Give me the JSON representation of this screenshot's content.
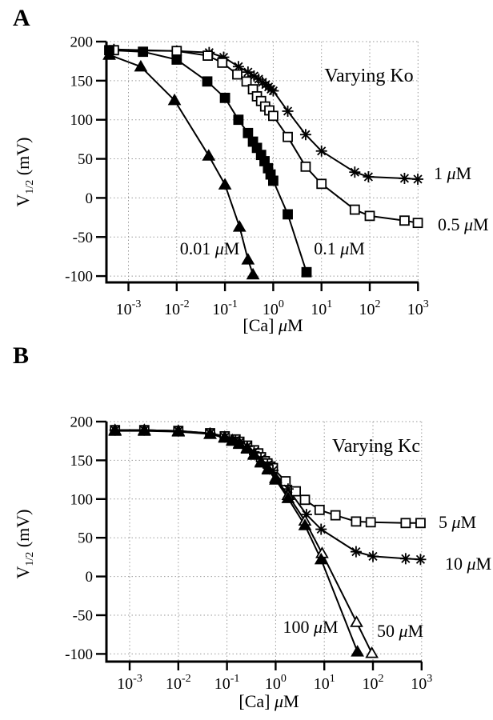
{
  "figure": {
    "description": "Two-panel plot of half-activation voltage versus calcium concentration",
    "panel_letters": [
      "A",
      "B"
    ]
  },
  "chart_data": [
    {
      "type": "line",
      "panel_letter": "A",
      "annotation": "Varying Ko",
      "xlabel": "[Ca] μM",
      "ylabel_parts": [
        "V",
        "1/2",
        " (mV)"
      ],
      "x_scale": "log",
      "xtick_exponents": [
        -3,
        -2,
        -1,
        0,
        1,
        2,
        3
      ],
      "yticks": [
        200,
        150,
        100,
        50,
        0,
        -50,
        -100
      ],
      "ylim": [
        -108,
        200
      ],
      "xlim_log": [
        -3.45,
        3.05
      ],
      "grid": true,
      "legend_position": "labels-on-curves",
      "series": [
        {
          "label": "1 μM",
          "marker": "asterisk",
          "points": [
            [
              0.0005,
              190
            ],
            [
              0.01,
              188
            ],
            [
              0.047,
              186
            ],
            [
              0.094,
              180
            ],
            [
              0.19,
              168
            ],
            [
              0.3,
              161
            ],
            [
              0.4,
              156
            ],
            [
              0.5,
              152
            ],
            [
              0.6,
              148
            ],
            [
              0.7,
              145
            ],
            [
              0.8,
              142
            ],
            [
              0.9,
              139
            ],
            [
              1.0,
              137
            ],
            [
              2,
              111
            ],
            [
              4.7,
              81
            ],
            [
              10,
              60
            ],
            [
              49,
              33
            ],
            [
              94,
              27
            ],
            [
              525,
              25
            ],
            [
              990,
              24
            ]
          ]
        },
        {
          "label": "0.5 μM",
          "marker": "open-square",
          "points": [
            [
              0.0005,
              189
            ],
            [
              0.01,
              188
            ],
            [
              0.044,
              182
            ],
            [
              0.088,
              173
            ],
            [
              0.18,
              158
            ],
            [
              0.28,
              149
            ],
            [
              0.38,
              139
            ],
            [
              0.46,
              130
            ],
            [
              0.56,
              124
            ],
            [
              0.68,
              117
            ],
            [
              0.83,
              112
            ],
            [
              1.0,
              105
            ],
            [
              2,
              78
            ],
            [
              4.7,
              40
            ],
            [
              10,
              18
            ],
            [
              49,
              -15
            ],
            [
              100,
              -23
            ],
            [
              525,
              -29
            ],
            [
              990,
              -32
            ]
          ]
        },
        {
          "label": "0.1 μM",
          "marker": "filled-square",
          "points": [
            [
              0.0004,
              189
            ],
            [
              0.002,
              187
            ],
            [
              0.01,
              177
            ],
            [
              0.043,
              149
            ],
            [
              0.1,
              128
            ],
            [
              0.19,
              100
            ],
            [
              0.3,
              83
            ],
            [
              0.38,
              72
            ],
            [
              0.46,
              64
            ],
            [
              0.56,
              55
            ],
            [
              0.66,
              47
            ],
            [
              0.78,
              38
            ],
            [
              0.88,
              30
            ],
            [
              1.0,
              22
            ],
            [
              2,
              -21
            ],
            [
              4.9,
              -95
            ]
          ]
        },
        {
          "label": "0.01 μM",
          "marker": "filled-triangle",
          "points": [
            [
              0.0004,
              183
            ],
            [
              0.0018,
              168
            ],
            [
              0.009,
              125
            ],
            [
              0.046,
              54
            ],
            [
              0.1,
              17
            ],
            [
              0.2,
              -37
            ],
            [
              0.3,
              -79
            ],
            [
              0.38,
              -98
            ]
          ]
        }
      ]
    },
    {
      "type": "line",
      "panel_letter": "B",
      "annotation": "Varying Kc",
      "xlabel": "[Ca] μM",
      "ylabel_parts": [
        "V",
        "1/2",
        " (mV)"
      ],
      "x_scale": "log",
      "xtick_exponents": [
        -3,
        -2,
        -1,
        0,
        1,
        2,
        3
      ],
      "yticks": [
        200,
        150,
        100,
        50,
        0,
        -50,
        -100
      ],
      "ylim": [
        -108,
        200
      ],
      "xlim_log": [
        -3.45,
        3.05
      ],
      "grid": true,
      "legend_position": "labels-on-curves",
      "series": [
        {
          "label": "5 μM",
          "marker": "open-square",
          "points": [
            [
              0.0005,
              189
            ],
            [
              0.002,
              189
            ],
            [
              0.01,
              188
            ],
            [
              0.045,
              185
            ],
            [
              0.09,
              181
            ],
            [
              0.15,
              177
            ],
            [
              0.18,
              174
            ],
            [
              0.26,
              169
            ],
            [
              0.36,
              163
            ],
            [
              0.44,
              159
            ],
            [
              0.5,
              154
            ],
            [
              0.6,
              149
            ],
            [
              0.68,
              146
            ],
            [
              0.78,
              142
            ],
            [
              0.88,
              140
            ],
            [
              1.6,
              123
            ],
            [
              2.6,
              110
            ],
            [
              4,
              99
            ],
            [
              8,
              86
            ],
            [
              17,
              79
            ],
            [
              45,
              71
            ],
            [
              90,
              70
            ],
            [
              470,
              69
            ],
            [
              950,
              69
            ]
          ]
        },
        {
          "label": "10 μM",
          "marker": "asterisk",
          "points": [
            [
              0.0005,
              189
            ],
            [
              0.002,
              189
            ],
            [
              0.01,
              188
            ],
            [
              0.045,
              185
            ],
            [
              0.09,
              180
            ],
            [
              0.15,
              176
            ],
            [
              0.18,
              173
            ],
            [
              0.26,
              168
            ],
            [
              0.36,
              161
            ],
            [
              0.5,
              152
            ],
            [
              0.68,
              144
            ],
            [
              0.88,
              137
            ],
            [
              1.8,
              113
            ],
            [
              4.3,
              80
            ],
            [
              8.6,
              61
            ],
            [
              45,
              32
            ],
            [
              100,
              26
            ],
            [
              470,
              23
            ],
            [
              950,
              22
            ]
          ]
        },
        {
          "label": "50 μM",
          "marker": "open-triangle",
          "points": [
            [
              0.0005,
              189
            ],
            [
              0.002,
              189
            ],
            [
              0.01,
              188
            ],
            [
              0.045,
              184
            ],
            [
              0.09,
              180
            ],
            [
              0.13,
              176
            ],
            [
              0.18,
              172
            ],
            [
              0.26,
              166
            ],
            [
              0.36,
              158
            ],
            [
              0.5,
              148
            ],
            [
              0.7,
              139
            ],
            [
              1.0,
              127
            ],
            [
              1.8,
              105
            ],
            [
              4,
              72
            ],
            [
              9,
              30
            ],
            [
              46,
              -59
            ],
            [
              95,
              -99
            ]
          ]
        },
        {
          "label": "100 μM",
          "marker": "filled-triangle",
          "points": [
            [
              0.0005,
              188
            ],
            [
              0.002,
              188
            ],
            [
              0.01,
              187
            ],
            [
              0.045,
              184
            ],
            [
              0.09,
              179
            ],
            [
              0.13,
              175
            ],
            [
              0.18,
              171
            ],
            [
              0.26,
              165
            ],
            [
              0.36,
              157
            ],
            [
              0.5,
              147
            ],
            [
              0.7,
              138
            ],
            [
              1.0,
              125
            ],
            [
              1.8,
              101
            ],
            [
              4,
              66
            ],
            [
              8.6,
              22
            ],
            [
              48,
              -97
            ]
          ]
        }
      ]
    }
  ]
}
